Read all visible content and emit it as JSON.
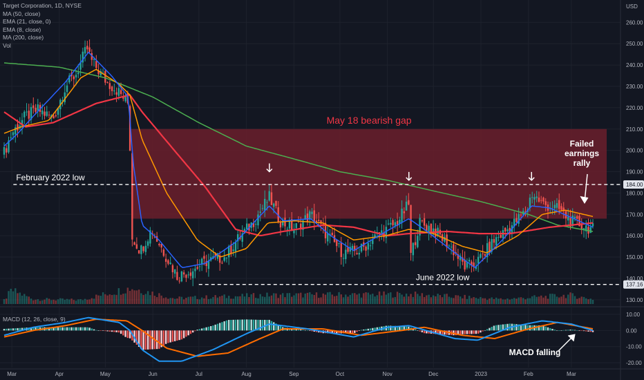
{
  "legend": {
    "title": "Target Corporation, 1D, NYSE",
    "studies": [
      "MA (50, close)",
      "EMA (21, close, 0)",
      "EMA (8, close)",
      "MA (200, close)",
      "Vol"
    ]
  },
  "macd_legend": "MACD (12, 26, close, 9)",
  "colors": {
    "background": "#131722",
    "grid": "#1e222d",
    "up": "#26a69a",
    "down": "#ef5350",
    "ma50": "#f23645",
    "ema21": "#ff9800",
    "ema8": "#2962ff",
    "ma200": "#4caf50",
    "gap_zone": "#6b1e2c",
    "macd_line": "#2196f3",
    "signal_line": "#ff6d00",
    "annotation": "#ffffff"
  },
  "chart_data": [
    {
      "type": "candlestick",
      "title": "Target Corporation, 1D, NYSE",
      "currency_label": "USD",
      "ylim": [
        128,
        264
      ],
      "y_ticks": [
        "260.00",
        "250.00",
        "240.00",
        "230.00",
        "220.00",
        "210.00",
        "200.00",
        "190.00",
        "180.00",
        "170.00",
        "160.00",
        "150.00",
        "140.00",
        "130.00"
      ],
      "x_labels": [
        "Mar",
        "Apr",
        "May",
        "Jun",
        "Jul",
        "Aug",
        "Sep",
        "Oct",
        "Nov",
        "Dec",
        "2023",
        "Feb",
        "Mar"
      ],
      "x_range": [
        "2022-02-24",
        "2023-03-15"
      ],
      "price_tags": [
        {
          "value": 184.0,
          "label": "184.00"
        },
        {
          "value": 137.16,
          "label": "137.16"
        }
      ],
      "series_knots": {
        "close": [
          [
            "2022-02-24",
            199
          ],
          [
            "2022-03-01",
            208
          ],
          [
            "2022-03-10",
            216
          ],
          [
            "2022-03-18",
            219
          ],
          [
            "2022-03-28",
            215
          ],
          [
            "2022-04-05",
            230
          ],
          [
            "2022-04-12",
            236
          ],
          [
            "2022-04-19",
            248
          ],
          [
            "2022-04-22",
            242
          ],
          [
            "2022-05-02",
            232
          ],
          [
            "2022-05-09",
            228
          ],
          [
            "2022-05-16",
            222
          ],
          [
            "2022-05-17",
            205
          ],
          [
            "2022-05-18",
            160
          ],
          [
            "2022-05-24",
            153
          ],
          [
            "2022-05-31",
            163
          ],
          [
            "2022-06-10",
            150
          ],
          [
            "2022-06-17",
            141
          ],
          [
            "2022-06-27",
            144
          ],
          [
            "2022-07-06",
            148
          ],
          [
            "2022-07-18",
            150
          ],
          [
            "2022-07-26",
            158
          ],
          [
            "2022-08-05",
            166
          ],
          [
            "2022-08-16",
            178
          ],
          [
            "2022-08-23",
            167
          ],
          [
            "2022-09-01",
            163
          ],
          [
            "2022-09-12",
            170
          ],
          [
            "2022-09-23",
            160
          ],
          [
            "2022-10-03",
            152
          ],
          [
            "2022-10-14",
            153
          ],
          [
            "2022-10-25",
            160
          ],
          [
            "2022-11-07",
            166
          ],
          [
            "2022-11-15",
            175
          ],
          [
            "2022-11-16",
            150
          ],
          [
            "2022-11-22",
            166
          ],
          [
            "2022-12-01",
            163
          ],
          [
            "2022-12-12",
            155
          ],
          [
            "2022-12-22",
            145
          ],
          [
            "2022-12-30",
            148
          ],
          [
            "2023-01-10",
            158
          ],
          [
            "2023-01-20",
            164
          ],
          [
            "2023-01-31",
            172
          ],
          [
            "2023-02-03",
            180
          ],
          [
            "2023-02-10",
            175
          ],
          [
            "2023-02-22",
            172
          ],
          [
            "2023-02-28",
            167
          ],
          [
            "2023-03-15",
            163
          ]
        ],
        "ma50": [
          [
            "2022-02-24",
            218
          ],
          [
            "2022-03-10",
            211
          ],
          [
            "2022-03-28",
            213
          ],
          [
            "2022-04-25",
            222
          ],
          [
            "2022-05-17",
            226
          ],
          [
            "2022-05-25",
            218
          ],
          [
            "2022-06-15",
            200
          ],
          [
            "2022-07-05",
            183
          ],
          [
            "2022-07-25",
            163
          ],
          [
            "2022-08-10",
            160
          ],
          [
            "2022-08-25",
            162
          ],
          [
            "2022-09-20",
            165
          ],
          [
            "2022-10-10",
            164
          ],
          [
            "2022-11-01",
            160
          ],
          [
            "2022-11-15",
            161
          ],
          [
            "2022-12-10",
            162
          ],
          [
            "2022-12-31",
            161
          ],
          [
            "2023-01-20",
            161
          ],
          [
            "2023-02-15",
            164
          ],
          [
            "2023-03-15",
            166
          ]
        ],
        "ema21": [
          [
            "2022-02-24",
            208
          ],
          [
            "2022-03-07",
            211
          ],
          [
            "2022-03-25",
            214
          ],
          [
            "2022-04-15",
            234
          ],
          [
            "2022-04-25",
            238
          ],
          [
            "2022-05-10",
            231
          ],
          [
            "2022-05-17",
            226
          ],
          [
            "2022-05-25",
            205
          ],
          [
            "2022-06-10",
            180
          ],
          [
            "2022-06-30",
            158
          ],
          [
            "2022-07-15",
            150
          ],
          [
            "2022-08-01",
            154
          ],
          [
            "2022-08-15",
            166
          ],
          [
            "2022-09-01",
            167
          ],
          [
            "2022-09-20",
            166
          ],
          [
            "2022-10-10",
            158
          ],
          [
            "2022-10-31",
            160
          ],
          [
            "2022-11-15",
            163
          ],
          [
            "2022-12-01",
            161
          ],
          [
            "2022-12-20",
            155
          ],
          [
            "2023-01-05",
            152
          ],
          [
            "2023-01-25",
            160
          ],
          [
            "2023-02-10",
            170
          ],
          [
            "2023-02-25",
            172
          ],
          [
            "2023-03-15",
            169
          ]
        ],
        "ema8": [
          [
            "2022-02-24",
            202
          ],
          [
            "2022-03-05",
            208
          ],
          [
            "2022-03-15",
            216
          ],
          [
            "2022-04-05",
            232
          ],
          [
            "2022-04-20",
            246
          ],
          [
            "2022-05-05",
            235
          ],
          [
            "2022-05-16",
            225
          ],
          [
            "2022-05-19",
            195
          ],
          [
            "2022-05-25",
            165
          ],
          [
            "2022-06-05",
            158
          ],
          [
            "2022-06-20",
            145
          ],
          [
            "2022-07-05",
            147
          ],
          [
            "2022-07-25",
            157
          ],
          [
            "2022-08-16",
            174
          ],
          [
            "2022-08-25",
            167
          ],
          [
            "2022-09-12",
            168
          ],
          [
            "2022-09-25",
            160
          ],
          [
            "2022-10-10",
            153
          ],
          [
            "2022-10-31",
            162
          ],
          [
            "2022-11-15",
            168
          ],
          [
            "2022-11-25",
            163
          ],
          [
            "2022-12-15",
            152
          ],
          [
            "2022-12-28",
            145
          ],
          [
            "2023-01-15",
            158
          ],
          [
            "2023-02-03",
            174
          ],
          [
            "2023-02-15",
            173
          ],
          [
            "2023-03-15",
            164
          ]
        ],
        "ma200": [
          [
            "2022-02-24",
            241
          ],
          [
            "2022-04-01",
            239
          ],
          [
            "2022-05-01",
            234
          ],
          [
            "2022-06-01",
            225
          ],
          [
            "2022-07-01",
            213
          ],
          [
            "2022-08-01",
            202
          ],
          [
            "2022-09-01",
            196
          ],
          [
            "2022-10-01",
            190
          ],
          [
            "2022-11-01",
            186
          ],
          [
            "2022-12-01",
            181
          ],
          [
            "2023-01-01",
            176
          ],
          [
            "2023-02-01",
            170
          ],
          [
            "2023-02-20",
            165
          ],
          [
            "2023-03-15",
            162
          ]
        ],
        "volume": [
          [
            "2022-02-24",
            0.25
          ],
          [
            "2022-03-01",
            0.85
          ],
          [
            "2022-03-15",
            0.3
          ],
          [
            "2022-04-15",
            0.25
          ],
          [
            "2022-05-18",
            1.0
          ],
          [
            "2022-06-15",
            0.35
          ],
          [
            "2022-08-16",
            0.55
          ],
          [
            "2022-11-16",
            0.6
          ],
          [
            "2023-01-15",
            0.3
          ],
          [
            "2023-02-28",
            0.55
          ],
          [
            "2023-03-15",
            0.3
          ]
        ]
      },
      "reference_lines": [
        {
          "value": 184.0,
          "from": "2022-03-02",
          "label": "February 2022 low"
        },
        {
          "value": 137.16,
          "from": "2022-07-01",
          "label": "June 2022 low"
        }
      ],
      "zones": [
        {
          "from": "2022-05-18",
          "to": "2023-03-15",
          "y0": 168,
          "y1": 210,
          "label": "May 18 bearish gap"
        }
      ],
      "annotations": [
        {
          "type": "arrow-down",
          "date": "2022-08-16",
          "value": 190
        },
        {
          "type": "arrow-down",
          "date": "2022-11-15",
          "value": 186
        },
        {
          "type": "arrow-down",
          "date": "2023-02-03",
          "value": 186
        },
        {
          "type": "text",
          "label": "Failed\nearnings\nrally"
        }
      ]
    },
    {
      "type": "macd",
      "title": "MACD (12, 26, close, 9)",
      "ylim": [
        -23,
        13
      ],
      "y_ticks": [
        "10.00",
        "0.00",
        "-10.00",
        "-20.00"
      ],
      "series_knots": {
        "macd": [
          [
            "2022-02-24",
            -3
          ],
          [
            "2022-03-15",
            2
          ],
          [
            "2022-04-05",
            5
          ],
          [
            "2022-04-20",
            8
          ],
          [
            "2022-05-10",
            5
          ],
          [
            "2022-05-17",
            0
          ],
          [
            "2022-05-25",
            -12
          ],
          [
            "2022-06-05",
            -19
          ],
          [
            "2022-06-20",
            -19
          ],
          [
            "2022-07-10",
            -12
          ],
          [
            "2022-08-01",
            -2
          ],
          [
            "2022-08-16",
            4
          ],
          [
            "2022-09-10",
            1
          ],
          [
            "2022-10-10",
            -4
          ],
          [
            "2022-11-01",
            2
          ],
          [
            "2022-11-15",
            3
          ],
          [
            "2022-12-15",
            -5
          ],
          [
            "2022-12-30",
            -6
          ],
          [
            "2023-01-20",
            2
          ],
          [
            "2023-02-10",
            6
          ],
          [
            "2023-03-01",
            4
          ],
          [
            "2023-03-15",
            0
          ]
        ],
        "signal": [
          [
            "2022-02-24",
            -4
          ],
          [
            "2022-03-15",
            0
          ],
          [
            "2022-04-05",
            3
          ],
          [
            "2022-04-25",
            7
          ],
          [
            "2022-05-15",
            6
          ],
          [
            "2022-05-25",
            0
          ],
          [
            "2022-06-10",
            -11
          ],
          [
            "2022-06-30",
            -16
          ],
          [
            "2022-07-20",
            -14
          ],
          [
            "2022-08-10",
            -5
          ],
          [
            "2022-08-25",
            1
          ],
          [
            "2022-09-20",
            1
          ],
          [
            "2022-10-15",
            -3
          ],
          [
            "2022-11-10",
            0
          ],
          [
            "2022-11-25",
            2
          ],
          [
            "2022-12-20",
            -3
          ],
          [
            "2023-01-10",
            -5
          ],
          [
            "2023-02-01",
            1
          ],
          [
            "2023-02-20",
            5
          ],
          [
            "2023-03-15",
            1
          ]
        ]
      },
      "annotations": [
        {
          "type": "text",
          "label": "MACD falling"
        }
      ]
    }
  ]
}
